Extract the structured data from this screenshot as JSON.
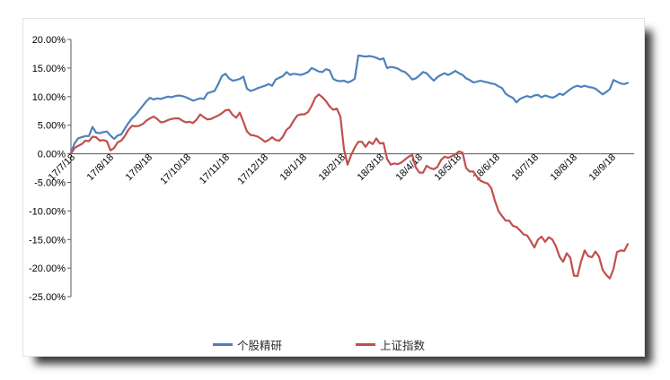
{
  "chart_data": {
    "type": "line",
    "title": "",
    "xlabel": "",
    "ylabel": "",
    "grid": false,
    "legend_position": "bottom",
    "ylim": [
      -25,
      20
    ],
    "y_tick_labels": [
      "20.00%",
      "15.00%",
      "10.00%",
      "5.00%",
      "0.00%",
      "-5.00%",
      "-10.00%",
      "-15.00%",
      "-20.00%",
      "-25.00%"
    ],
    "x_tick_labels": [
      "17/7/18",
      "17/8/18",
      "17/9/18",
      "17/10/18",
      "17/11/18",
      "17/12/18",
      "18/1/18",
      "18/2/18",
      "18/3/18",
      "18/4/18",
      "18/5/18",
      "18/6/18",
      "18/7/18",
      "18/8/18",
      "18/9/18"
    ],
    "axis_color": "#595959",
    "series": [
      {
        "name": "个股精研",
        "color": "#4F81BD",
        "unit": "%",
        "values": [
          0.2,
          1.8,
          2.7,
          2.9,
          3.1,
          3.1,
          4.7,
          3.7,
          3.6,
          3.8,
          3.9,
          3.2,
          2.6,
          3.2,
          3.4,
          4.4,
          5.4,
          6.2,
          6.8,
          7.6,
          8.4,
          9.2,
          9.8,
          9.5,
          9.7,
          9.6,
          9.8,
          10.0,
          9.9,
          10.1,
          10.2,
          10.1,
          9.9,
          9.6,
          9.3,
          9.5,
          9.7,
          9.6,
          10.6,
          10.8,
          11.0,
          12.2,
          13.6,
          14.0,
          13.2,
          12.8,
          12.9,
          13.1,
          13.5,
          11.4,
          11.0,
          11.2,
          11.5,
          11.7,
          11.9,
          12.2,
          11.9,
          13.0,
          13.3,
          13.6,
          14.3,
          13.8,
          14.0,
          13.9,
          13.8,
          14.0,
          14.3,
          15.0,
          14.7,
          14.4,
          14.3,
          14.8,
          14.6,
          13.1,
          12.8,
          12.7,
          12.8,
          12.5,
          12.7,
          13.1,
          17.2,
          17.1,
          17.0,
          17.1,
          17.0,
          16.8,
          16.5,
          16.7,
          15.0,
          15.2,
          15.1,
          14.9,
          14.5,
          14.3,
          13.7,
          13.0,
          13.2,
          13.7,
          14.3,
          14.1,
          13.4,
          12.8,
          13.4,
          13.8,
          14.1,
          13.8,
          14.1,
          14.5,
          14.1,
          13.8,
          13.2,
          12.9,
          12.5,
          12.6,
          12.8,
          12.6,
          12.5,
          12.3,
          12.2,
          11.8,
          11.5,
          10.5,
          10.1,
          9.8,
          9.0,
          9.6,
          9.9,
          10.1,
          9.9,
          10.2,
          10.3,
          9.9,
          10.2,
          10.0,
          9.8,
          10.1,
          10.5,
          10.3,
          10.8,
          11.3,
          11.7,
          11.9,
          11.7,
          11.9,
          11.7,
          11.6,
          11.4,
          10.9,
          10.4,
          10.8,
          11.3,
          12.9,
          12.6,
          12.3,
          12.2,
          12.4
        ]
      },
      {
        "name": "上证指数",
        "color": "#C0504D",
        "unit": "%",
        "values": [
          0.0,
          1.0,
          1.4,
          1.7,
          2.3,
          2.2,
          3.0,
          2.9,
          2.3,
          2.4,
          2.2,
          0.6,
          1.0,
          2.0,
          2.3,
          3.1,
          4.2,
          4.9,
          4.8,
          4.9,
          5.2,
          5.8,
          6.2,
          6.5,
          6.1,
          5.5,
          5.6,
          5.9,
          6.1,
          6.2,
          6.2,
          5.8,
          5.5,
          5.6,
          5.4,
          6.0,
          6.9,
          6.4,
          6.0,
          6.1,
          6.4,
          6.7,
          7.1,
          7.6,
          7.7,
          6.8,
          6.3,
          7.2,
          5.6,
          3.9,
          3.3,
          3.2,
          3.0,
          2.6,
          2.1,
          2.4,
          2.9,
          2.4,
          2.3,
          3.0,
          4.2,
          4.7,
          5.8,
          6.7,
          6.9,
          6.9,
          7.3,
          8.4,
          9.8,
          10.4,
          9.9,
          9.2,
          8.3,
          7.7,
          7.9,
          6.5,
          0.8,
          -1.9,
          -0.2,
          1.1,
          2.1,
          2.1,
          1.2,
          2.1,
          1.7,
          2.7,
          1.8,
          1.9,
          -0.9,
          -1.9,
          -1.7,
          -1.8,
          -1.5,
          -1.0,
          -0.5,
          -0.2,
          -2.4,
          -3.3,
          -3.3,
          -2.1,
          -2.5,
          -2.7,
          -2.3,
          -1.1,
          -0.5,
          -0.7,
          -0.4,
          -0.1,
          0.4,
          0.2,
          -2.5,
          -3.1,
          -3.1,
          -4.0,
          -4.7,
          -5.0,
          -5.2,
          -6.0,
          -8.2,
          -10.0,
          -10.9,
          -11.7,
          -11.7,
          -12.6,
          -12.8,
          -13.4,
          -14.1,
          -14.3,
          -15.3,
          -16.4,
          -15.0,
          -14.5,
          -15.4,
          -14.6,
          -15.0,
          -16.2,
          -18.0,
          -18.9,
          -17.4,
          -18.2,
          -21.3,
          -21.4,
          -18.8,
          -16.9,
          -17.9,
          -18.1,
          -17.1,
          -18.0,
          -20.3,
          -21.2,
          -21.8,
          -20.2,
          -17.2,
          -16.9,
          -17.0,
          -15.8
        ]
      }
    ]
  },
  "legend": {
    "series1_label": "个股精研",
    "series2_label": "上证指数"
  }
}
